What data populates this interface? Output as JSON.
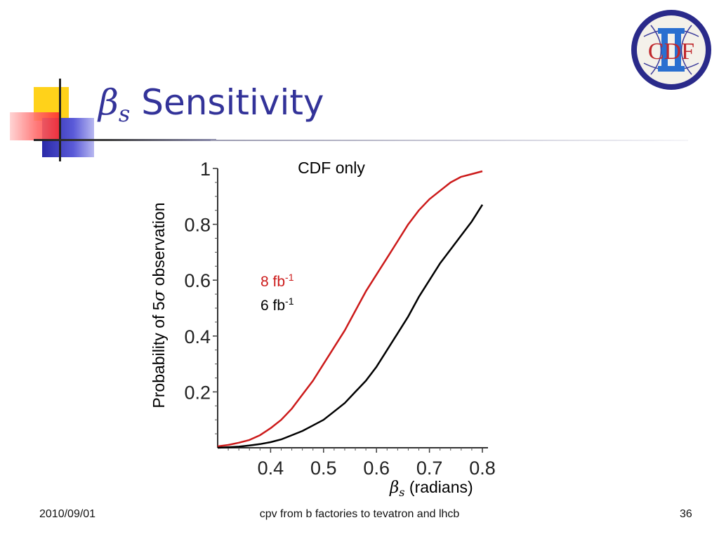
{
  "slide": {
    "title_symbol": "β",
    "title_subscript": "s",
    "title_text": " Sensitivity"
  },
  "logo": {
    "text_outer": "CDF",
    "text_inner": "II",
    "ring_color": "#2a2a8a",
    "text_color": "#c0282d"
  },
  "chart_data": {
    "type": "line",
    "title": "CDF only",
    "xlabel_symbol": "β",
    "xlabel_subscript": "s",
    "xlabel": " (radians)",
    "ylabel_prefix": "Probability of 5",
    "ylabel_symbol": "σ",
    "ylabel_suffix": " observation",
    "xlim": [
      0.3,
      0.8
    ],
    "ylim": [
      0,
      1
    ],
    "xticks": [
      0.4,
      0.5,
      0.6,
      0.7,
      0.8
    ],
    "yticks": [
      0.2,
      0.4,
      0.6,
      0.8,
      1
    ],
    "xtick_labels": [
      "0.4",
      "0.5",
      "0.6",
      "0.7",
      "0.8"
    ],
    "ytick_labels": [
      "0.2",
      "0.4",
      "0.6",
      "0.8",
      "1"
    ],
    "grid": false,
    "legend_position": "center",
    "series": [
      {
        "name": "8 fb",
        "superscript": "-1",
        "color": "#cc1a1a",
        "x": [
          0.3,
          0.32,
          0.34,
          0.36,
          0.38,
          0.4,
          0.42,
          0.44,
          0.46,
          0.48,
          0.5,
          0.52,
          0.54,
          0.56,
          0.58,
          0.6,
          0.62,
          0.64,
          0.66,
          0.68,
          0.7,
          0.72,
          0.74,
          0.76,
          0.78,
          0.8
        ],
        "y": [
          0.005,
          0.01,
          0.018,
          0.028,
          0.045,
          0.07,
          0.1,
          0.14,
          0.19,
          0.24,
          0.3,
          0.36,
          0.42,
          0.49,
          0.56,
          0.62,
          0.68,
          0.74,
          0.8,
          0.85,
          0.89,
          0.92,
          0.95,
          0.97,
          0.98,
          0.99
        ]
      },
      {
        "name": "6 fb",
        "superscript": "-1",
        "color": "#000000",
        "x": [
          0.3,
          0.32,
          0.34,
          0.36,
          0.38,
          0.4,
          0.42,
          0.44,
          0.46,
          0.48,
          0.5,
          0.52,
          0.54,
          0.56,
          0.58,
          0.6,
          0.62,
          0.64,
          0.66,
          0.68,
          0.7,
          0.72,
          0.74,
          0.76,
          0.78,
          0.8
        ],
        "y": [
          0.0,
          0.002,
          0.004,
          0.008,
          0.013,
          0.02,
          0.03,
          0.045,
          0.06,
          0.08,
          0.1,
          0.13,
          0.16,
          0.2,
          0.24,
          0.29,
          0.35,
          0.41,
          0.47,
          0.54,
          0.6,
          0.66,
          0.71,
          0.76,
          0.81,
          0.87
        ]
      }
    ]
  },
  "footer": {
    "date": "2010/09/01",
    "center": "cpv from b factories to tevatron and lhcb",
    "page": "36"
  }
}
